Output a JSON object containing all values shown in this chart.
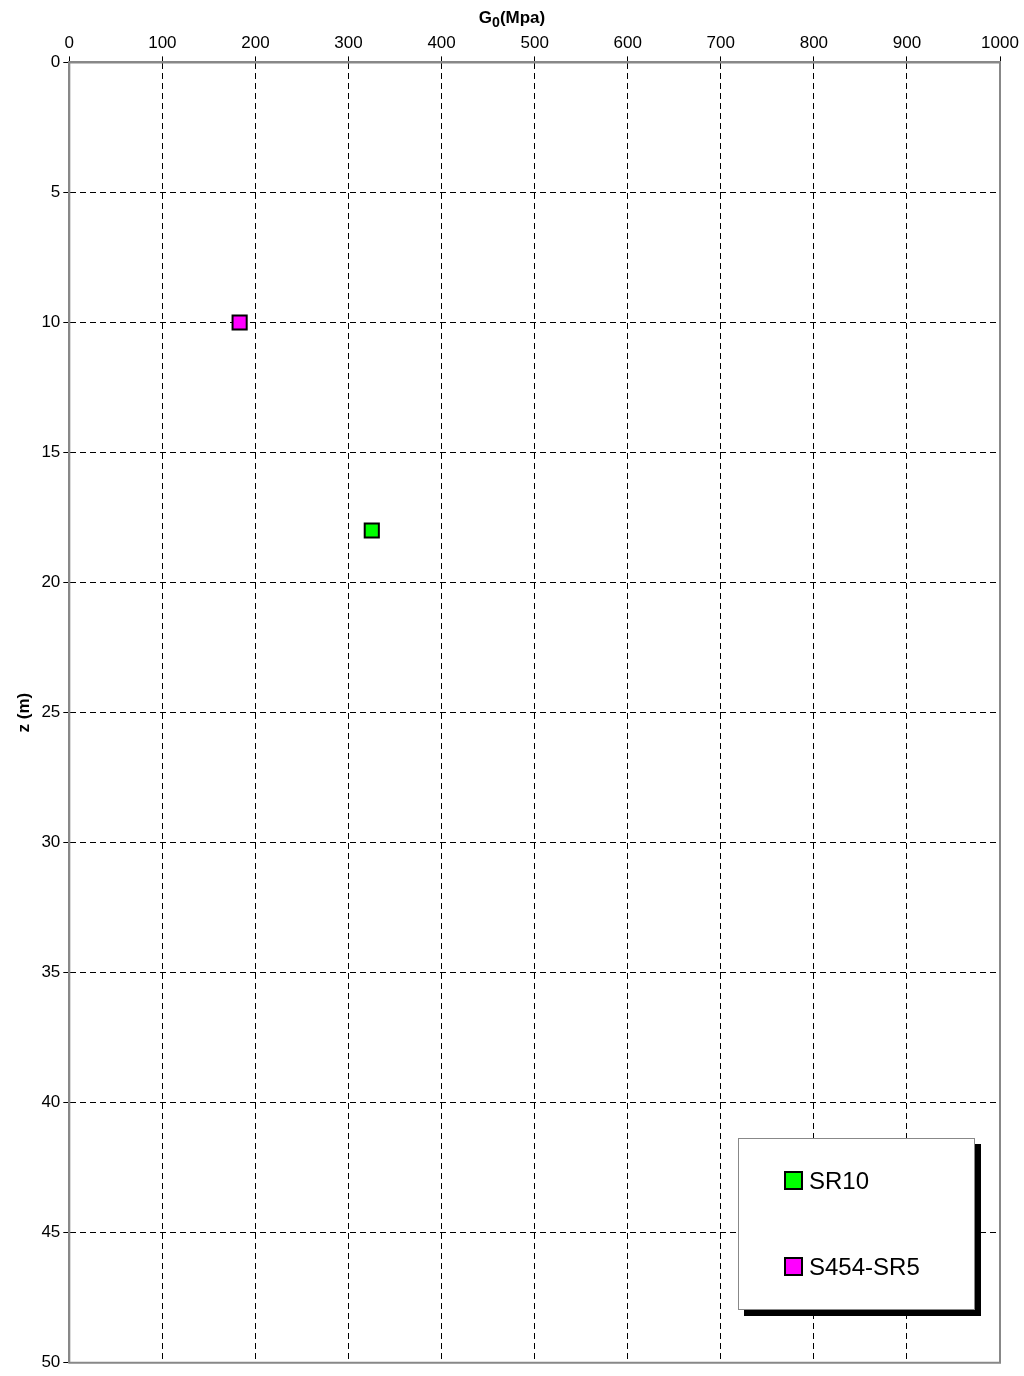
{
  "chart_data": {
    "type": "scatter",
    "xlabel": "G$_{0}$(Mpa)",
    "ylabel": "z (m)",
    "series": [
      {
        "name": "SR10",
        "color": "#00ff00",
        "x": [
          325
        ],
        "values": [
          18
        ]
      },
      {
        "name": "S454-SR5",
        "color": "#ff00ff",
        "x": [
          183
        ],
        "values": [
          10
        ]
      }
    ],
    "xlim": [
      0,
      1000
    ],
    "xticks": [
      0,
      100,
      200,
      300,
      400,
      500,
      600,
      700,
      800,
      900,
      1000
    ],
    "ylim": [
      50,
      0
    ],
    "yticks": [
      0,
      5,
      10,
      15,
      20,
      25,
      30,
      35,
      40,
      45,
      50
    ],
    "grid": true,
    "legend": "bottom right",
    "marker": "square"
  }
}
